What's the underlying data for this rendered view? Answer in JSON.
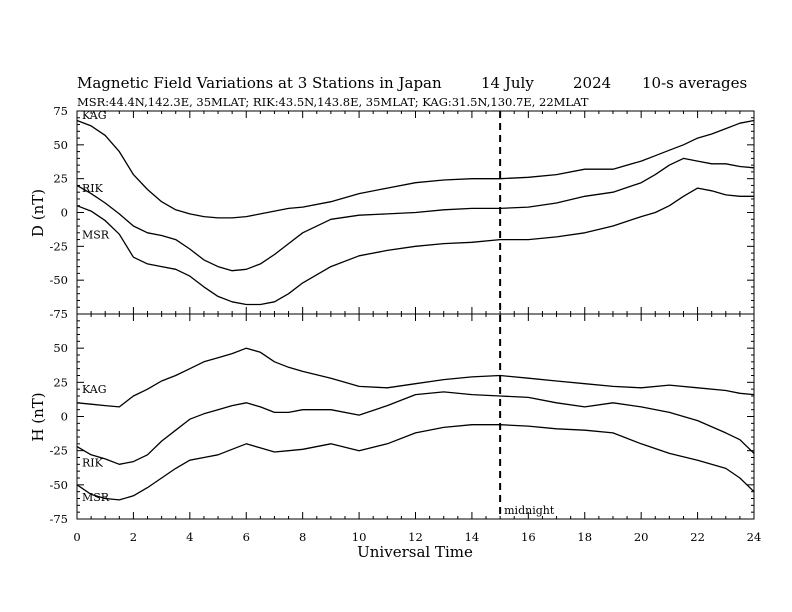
{
  "header": {
    "title": "Magnetic Field Variations at 3 Stations in Japan",
    "date": "14 July",
    "year": "2024",
    "averaging": "10-s averages",
    "stations_line": "MSR:44.4N,142.3E, 35MLAT;  RIK:43.5N,143.8E, 35MLAT;  KAG:31.5N,130.7E, 22MLAT"
  },
  "chart_data": [
    {
      "type": "line",
      "panel": "D",
      "ylabel": "D (nT)",
      "xlabel": "",
      "xlim": [
        0,
        24
      ],
      "ylim": [
        -75,
        75
      ],
      "yticks": [
        "75",
        "50",
        "25",
        "0",
        "-25",
        "-50",
        "-75"
      ],
      "series": [
        {
          "name": "KAG",
          "x": [
            0,
            0.5,
            1,
            1.5,
            2,
            2.5,
            3,
            3.5,
            4,
            4.5,
            5,
            5.5,
            6,
            6.5,
            7,
            7.5,
            8,
            9,
            10,
            11,
            12,
            13,
            14,
            15,
            16,
            17,
            18,
            19,
            20,
            20.5,
            21,
            21.5,
            22,
            22.5,
            23,
            23.5,
            24
          ],
          "y": [
            68,
            64,
            57,
            45,
            28,
            17,
            8,
            2,
            -1,
            -3,
            -4,
            -4,
            -3,
            -1,
            1,
            3,
            4,
            8,
            14,
            18,
            22,
            24,
            25,
            25,
            26,
            28,
            32,
            32,
            38,
            42,
            46,
            50,
            55,
            58,
            62,
            66,
            68
          ]
        },
        {
          "name": "RIK",
          "x": [
            0,
            0.5,
            1,
            1.5,
            2,
            2.5,
            3,
            3.5,
            4,
            4.5,
            5,
            5.5,
            6,
            6.5,
            7,
            7.5,
            8,
            9,
            10,
            11,
            12,
            13,
            14,
            15,
            16,
            17,
            18,
            19,
            20,
            20.5,
            21,
            21.5,
            22,
            22.5,
            23,
            23.5,
            24
          ],
          "y": [
            20,
            14,
            7,
            -1,
            -10,
            -15,
            -17,
            -20,
            -27,
            -35,
            -40,
            -43,
            -42,
            -38,
            -31,
            -23,
            -15,
            -5,
            -2,
            -1,
            0,
            2,
            3,
            3,
            4,
            7,
            12,
            15,
            22,
            28,
            35,
            40,
            38,
            36,
            36,
            34,
            33
          ]
        },
        {
          "name": "MSR",
          "x": [
            0,
            0.5,
            1,
            1.5,
            2,
            2.5,
            3,
            3.5,
            4,
            4.5,
            5,
            5.5,
            6,
            6.5,
            7,
            7.5,
            8,
            9,
            10,
            11,
            12,
            13,
            14,
            15,
            16,
            17,
            18,
            19,
            20,
            20.5,
            21,
            21.5,
            22,
            22.5,
            23,
            23.5,
            24
          ],
          "y": [
            5,
            1,
            -6,
            -16,
            -33,
            -38,
            -40,
            -42,
            -47,
            -55,
            -62,
            -66,
            -68,
            -68,
            -66,
            -60,
            -52,
            -40,
            -32,
            -28,
            -25,
            -23,
            -22,
            -20,
            -20,
            -18,
            -15,
            -10,
            -3,
            0,
            5,
            12,
            18,
            16,
            13,
            12,
            12
          ]
        }
      ]
    },
    {
      "type": "line",
      "panel": "H",
      "ylabel": "H (nT)",
      "xlabel": "Universal Time",
      "xlim": [
        0,
        24
      ],
      "ylim": [
        -75,
        75
      ],
      "yticks": [
        "50",
        "25",
        "0",
        "-25",
        "-50",
        "-75"
      ],
      "xticks": [
        "0",
        "2",
        "4",
        "6",
        "8",
        "10",
        "12",
        "14",
        "16",
        "18",
        "20",
        "22",
        "24"
      ],
      "series": [
        {
          "name": "KAG",
          "x": [
            0,
            0.5,
            1,
            1.5,
            2,
            2.5,
            3,
            3.5,
            4,
            4.5,
            5,
            5.5,
            6,
            6.5,
            7,
            7.5,
            8,
            9,
            10,
            11,
            12,
            13,
            14,
            15,
            16,
            17,
            18,
            19,
            20,
            21,
            22,
            23,
            23.5,
            24
          ],
          "y": [
            10,
            9,
            8,
            7,
            15,
            20,
            26,
            30,
            35,
            40,
            43,
            46,
            50,
            47,
            40,
            36,
            33,
            28,
            22,
            21,
            24,
            27,
            29,
            30,
            28,
            26,
            24,
            22,
            21,
            23,
            21,
            19,
            17,
            16
          ]
        },
        {
          "name": "RIK",
          "x": [
            0,
            0.5,
            1,
            1.5,
            2,
            2.5,
            3,
            3.5,
            4,
            4.5,
            5,
            5.5,
            6,
            6.5,
            7,
            7.5,
            8,
            9,
            10,
            11,
            12,
            13,
            14,
            15,
            16,
            17,
            18,
            19,
            20,
            21,
            22,
            23,
            23.5,
            24
          ],
          "y": [
            -22,
            -28,
            -31,
            -35,
            -33,
            -28,
            -18,
            -10,
            -2,
            2,
            5,
            8,
            10,
            7,
            3,
            3,
            5,
            5,
            1,
            8,
            16,
            18,
            16,
            15,
            14,
            10,
            7,
            10,
            7,
            3,
            -3,
            -12,
            -17,
            -27
          ]
        },
        {
          "name": "MSR",
          "x": [
            0,
            0.5,
            1,
            1.5,
            2,
            2.5,
            3,
            3.5,
            4,
            4.5,
            5,
            5.5,
            6,
            6.5,
            7,
            7.5,
            8,
            9,
            10,
            11,
            12,
            13,
            14,
            15,
            16,
            17,
            18,
            19,
            20,
            21,
            22,
            23,
            23.5,
            24
          ],
          "y": [
            -50,
            -57,
            -60,
            -61,
            -58,
            -52,
            -45,
            -38,
            -32,
            -30,
            -28,
            -24,
            -20,
            -23,
            -26,
            -25,
            -24,
            -20,
            -25,
            -20,
            -12,
            -8,
            -6,
            -6,
            -7,
            -9,
            -10,
            -12,
            -20,
            -27,
            -32,
            -38,
            -45,
            -55
          ]
        }
      ]
    }
  ],
  "annotation": {
    "midnight_label": "midnight",
    "midnight_x": 15
  },
  "colors": {
    "line": "#000000",
    "background": "#ffffff"
  }
}
